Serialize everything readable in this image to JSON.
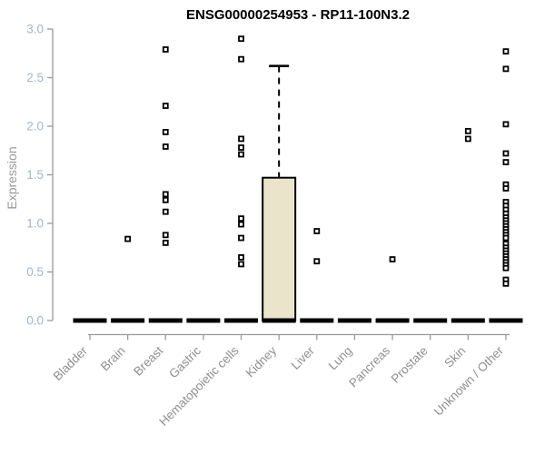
{
  "title": "ENSG00000254953 - RP11-100N3.2",
  "chart_data": {
    "type": "boxplot",
    "title": "ENSG00000254953 - RP11-100N3.2",
    "ylabel": "Expression",
    "ylim": [
      0.0,
      3.0
    ],
    "yticks": [
      0.0,
      0.5,
      1.0,
      1.5,
      2.0,
      2.5,
      3.0
    ],
    "grid": false,
    "legend": "none",
    "colors": {
      "box_fill": "#EAE4CB",
      "box_stroke": "#000000",
      "axis_line": "#999999",
      "y_tick_label": "#a4b6c6",
      "x_tick_label": "#8f8f8f",
      "outlier_stroke": "#000000",
      "outlier_fill": "#ffffff"
    },
    "categories": [
      "Bladder",
      "Brain",
      "Breast",
      "Gastric",
      "Hematopoietic cells",
      "Kidney",
      "Liver",
      "Lung",
      "Pancreas",
      "Prostate",
      "Skin",
      "Unknown / Other"
    ],
    "boxes": [
      {
        "category": "Bladder",
        "q1": 0.0,
        "median": 0.0,
        "q3": 0.0,
        "whisker_low": 0.0,
        "whisker_high": 0.0,
        "outliers": []
      },
      {
        "category": "Brain",
        "q1": 0.0,
        "median": 0.0,
        "q3": 0.0,
        "whisker_low": 0.0,
        "whisker_high": 0.0,
        "outliers": [
          0.84
        ]
      },
      {
        "category": "Breast",
        "q1": 0.0,
        "median": 0.0,
        "q3": 0.0,
        "whisker_low": 0.0,
        "whisker_high": 0.0,
        "outliers": [
          2.79,
          2.21,
          1.94,
          1.79,
          1.3,
          1.24,
          1.12,
          0.88,
          0.8
        ]
      },
      {
        "category": "Gastric",
        "q1": 0.0,
        "median": 0.0,
        "q3": 0.0,
        "whisker_low": 0.0,
        "whisker_high": 0.0,
        "outliers": []
      },
      {
        "category": "Hematopoietic cells",
        "q1": 0.0,
        "median": 0.0,
        "q3": 0.0,
        "whisker_low": 0.0,
        "whisker_high": 0.0,
        "outliers": [
          2.9,
          2.69,
          1.87,
          1.78,
          1.71,
          1.05,
          0.99,
          0.85,
          0.65,
          0.58
        ]
      },
      {
        "category": "Kidney",
        "q1": 0.0,
        "median": 0.0,
        "q3": 1.47,
        "whisker_low": 0.0,
        "whisker_high": 2.62,
        "outliers": []
      },
      {
        "category": "Liver",
        "q1": 0.0,
        "median": 0.0,
        "q3": 0.0,
        "whisker_low": 0.0,
        "whisker_high": 0.0,
        "outliers": [
          0.92,
          0.61
        ]
      },
      {
        "category": "Lung",
        "q1": 0.0,
        "median": 0.0,
        "q3": 0.0,
        "whisker_low": 0.0,
        "whisker_high": 0.0,
        "outliers": []
      },
      {
        "category": "Pancreas",
        "q1": 0.0,
        "median": 0.0,
        "q3": 0.0,
        "whisker_low": 0.0,
        "whisker_high": 0.0,
        "outliers": [
          0.63
        ]
      },
      {
        "category": "Prostate",
        "q1": 0.0,
        "median": 0.0,
        "q3": 0.0,
        "whisker_low": 0.0,
        "whisker_high": 0.0,
        "outliers": []
      },
      {
        "category": "Skin",
        "q1": 0.0,
        "median": 0.0,
        "q3": 0.0,
        "whisker_low": 0.0,
        "whisker_high": 0.0,
        "outliers": [
          1.95,
          1.87
        ]
      },
      {
        "category": "Unknown / Other",
        "q1": 0.0,
        "median": 0.0,
        "q3": 0.0,
        "whisker_low": 0.0,
        "whisker_high": 0.0,
        "outliers": [
          2.77,
          2.59,
          2.02,
          1.72,
          1.63,
          1.4,
          1.36,
          1.22,
          1.18,
          1.14,
          1.1,
          1.06,
          1.03,
          1.0,
          0.97,
          0.94,
          0.91,
          0.88,
          0.85,
          0.79,
          0.75,
          0.72,
          0.69,
          0.66,
          0.63,
          0.6,
          0.57,
          0.54,
          0.42,
          0.38
        ]
      }
    ]
  }
}
